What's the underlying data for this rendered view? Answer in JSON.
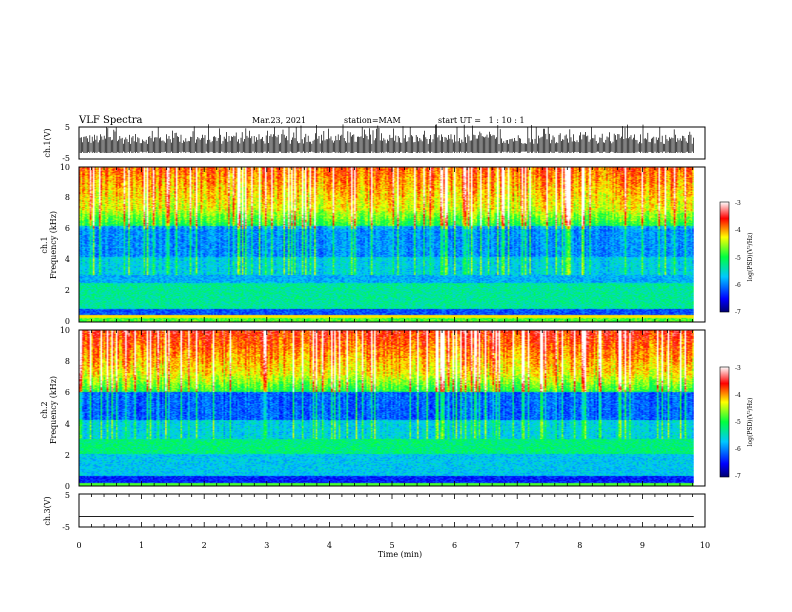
{
  "header": {
    "title": "VLF Spectra",
    "date": "Mar.23, 2021",
    "station": "station=MAM",
    "start": "start UT =   1 : 10 : 1"
  },
  "chart_data": [
    {
      "type": "line",
      "name": "ch1-waveform",
      "ylabel": "ch.1(V)",
      "ylim": [
        -5,
        5
      ],
      "yticks": [
        "5",
        "-5"
      ],
      "xlim": [
        0,
        10
      ]
    },
    {
      "type": "heatmap",
      "name": "ch1-spectrogram",
      "ylabel_top": "ch.1",
      "ylabel": "Frequency (kHz)",
      "xlim": [
        0,
        10
      ],
      "ylim": [
        0,
        10
      ],
      "yticks": [
        "0",
        "2",
        "4",
        "6",
        "8",
        "10"
      ],
      "colorbar": {
        "label": "log(PSD)(V²/Hz)",
        "range": [
          -7,
          -3
        ],
        "ticks": [
          "-3",
          "-4",
          "-5",
          "-6",
          "-7"
        ]
      }
    },
    {
      "type": "heatmap",
      "name": "ch2-spectrogram",
      "ylabel_top": "ch.2",
      "ylabel": "Frequency (kHz)",
      "xlim": [
        0,
        10
      ],
      "ylim": [
        0,
        10
      ],
      "yticks": [
        "0",
        "2",
        "4",
        "6",
        "8",
        "10"
      ],
      "colorbar": {
        "label": "log(PSD)(V²/Hz)",
        "range": [
          -7,
          -3
        ],
        "ticks": [
          "-3",
          "-4",
          "-5",
          "-6",
          "-7"
        ]
      }
    },
    {
      "type": "line",
      "name": "ch3-waveform",
      "ylabel": "ch.3(V)",
      "ylim": [
        -5,
        5
      ],
      "yticks": [
        "5",
        "-5"
      ],
      "xlim": [
        0,
        10
      ],
      "values": [
        -1.8,
        -1.8
      ]
    }
  ],
  "xaxis": {
    "label": "Time (min)",
    "ticks": [
      "0",
      "1",
      "2",
      "3",
      "4",
      "5",
      "6",
      "7",
      "8",
      "9",
      "10"
    ],
    "data_end": 9.82
  }
}
